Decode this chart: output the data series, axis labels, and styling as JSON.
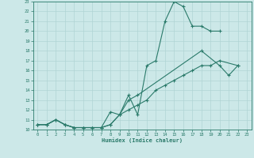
{
  "xlabel": "Humidex (Indice chaleur)",
  "xlim": [
    -0.5,
    23.5
  ],
  "ylim": [
    10,
    23
  ],
  "yticks": [
    10,
    11,
    12,
    13,
    14,
    15,
    16,
    17,
    18,
    19,
    20,
    21,
    22,
    23
  ],
  "xticks": [
    0,
    1,
    2,
    3,
    4,
    5,
    6,
    7,
    8,
    9,
    10,
    11,
    12,
    13,
    14,
    15,
    16,
    17,
    18,
    19,
    20,
    21,
    22,
    23
  ],
  "bg_color": "#cce8e8",
  "grid_color": "#b0d4d4",
  "line_color": "#2a7a6a",
  "line1_x": [
    0,
    1,
    2,
    3,
    4,
    5,
    6,
    7,
    8,
    9,
    10,
    11,
    12,
    13,
    14,
    15,
    16,
    17,
    18,
    19,
    20
  ],
  "line1_y": [
    10.5,
    10.5,
    11.0,
    10.5,
    10.2,
    10.2,
    10.2,
    10.2,
    11.8,
    11.5,
    13.5,
    11.5,
    16.5,
    17.0,
    21.0,
    23.0,
    22.5,
    20.5,
    20.5,
    20.0,
    20.0
  ],
  "line2_x": [
    0,
    1,
    2,
    3,
    4,
    5,
    6,
    7,
    8,
    9,
    10,
    11,
    18,
    20,
    21,
    22
  ],
  "line2_y": [
    10.5,
    10.5,
    11.0,
    10.5,
    10.2,
    10.2,
    10.2,
    10.2,
    10.5,
    11.5,
    13.0,
    13.5,
    18.0,
    16.5,
    15.5,
    16.5
  ],
  "line3_x": [
    0,
    1,
    2,
    3,
    4,
    5,
    6,
    7,
    8,
    9,
    10,
    11,
    12,
    13,
    14,
    15,
    16,
    17,
    18,
    19,
    20,
    22
  ],
  "line3_y": [
    10.5,
    10.5,
    11.0,
    10.5,
    10.2,
    10.2,
    10.2,
    10.2,
    10.5,
    11.5,
    12.0,
    12.5,
    13.0,
    14.0,
    14.5,
    15.0,
    15.5,
    16.0,
    16.5,
    16.5,
    17.0,
    16.5
  ]
}
